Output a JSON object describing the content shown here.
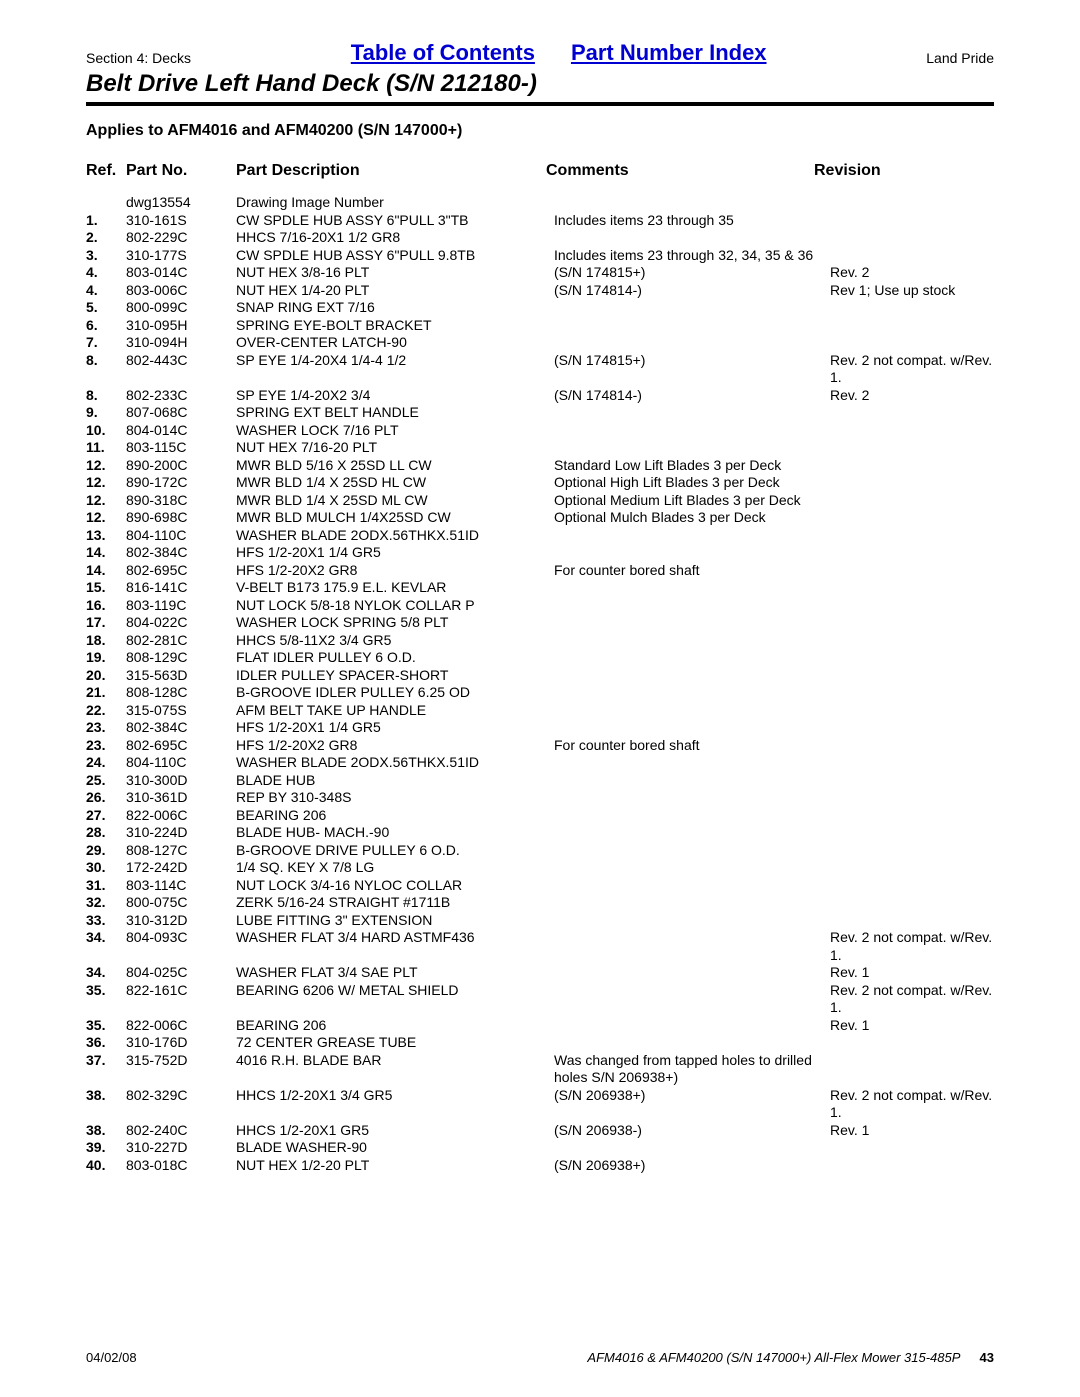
{
  "header": {
    "section_label": "Section 4: Decks",
    "toc_link": "Table of Contents",
    "pni_link": "Part Number Index",
    "brand": "Land Pride",
    "title": "Belt Drive Left Hand Deck (S/N 212180-)",
    "applies_to": "Applies to AFM4016 and AFM40200 (S/N 147000+)"
  },
  "columns": {
    "ref": "Ref.",
    "part": "Part No.",
    "desc": "Part Description",
    "comm": "Comments",
    "rev": "Revision"
  },
  "rows": [
    {
      "ref": "",
      "part": "dwg13554",
      "desc": "Drawing Image Number",
      "comm": "",
      "rev": ""
    },
    {
      "ref": "1.",
      "part": "310-161S",
      "desc": "CW SPDLE HUB ASSY 6\"PULL 3\"TB",
      "comm": "Includes items 23 through 35",
      "rev": ""
    },
    {
      "ref": "2.",
      "part": "802-229C",
      "desc": "HHCS 7/16-20X1 1/2 GR8",
      "comm": "",
      "rev": ""
    },
    {
      "ref": "3.",
      "part": "310-177S",
      "desc": "CW SPDLE HUB ASSY 6\"PULL 9.8TB",
      "comm": "Includes items 23 through 32, 34, 35 & 36",
      "rev": ""
    },
    {
      "ref": "4.",
      "part": "803-014C",
      "desc": "NUT HEX 3/8-16 PLT",
      "comm": "(S/N 174815+)",
      "rev": "Rev. 2"
    },
    {
      "ref": "4.",
      "part": "803-006C",
      "desc": "NUT HEX 1/4-20 PLT",
      "comm": "(S/N 174814-)",
      "rev": "Rev 1; Use up stock"
    },
    {
      "ref": "5.",
      "part": "800-099C",
      "desc": "SNAP RING EXT 7/16",
      "comm": "",
      "rev": ""
    },
    {
      "ref": "6.",
      "part": "310-095H",
      "desc": "SPRING EYE-BOLT BRACKET",
      "comm": "",
      "rev": ""
    },
    {
      "ref": "7.",
      "part": "310-094H",
      "desc": "OVER-CENTER LATCH-90",
      "comm": "",
      "rev": ""
    },
    {
      "ref": "8.",
      "part": "802-443C",
      "desc": "SP EYE 1/4-20X4 1/4-4 1/2",
      "comm": "(S/N 174815+)",
      "rev": "Rev. 2 not compat. w/Rev. 1."
    },
    {
      "ref": "8.",
      "part": "802-233C",
      "desc": "SP EYE 1/4-20X2 3/4",
      "comm": "(S/N 174814-)",
      "rev": "Rev. 2"
    },
    {
      "ref": "9.",
      "part": "807-068C",
      "desc": "SPRING EXT BELT HANDLE",
      "comm": "",
      "rev": ""
    },
    {
      "ref": "10.",
      "part": "804-014C",
      "desc": "WASHER LOCK 7/16 PLT",
      "comm": "",
      "rev": ""
    },
    {
      "ref": "11.",
      "part": "803-115C",
      "desc": "NUT HEX 7/16-20 PLT",
      "comm": "",
      "rev": ""
    },
    {
      "ref": "12.",
      "part": "890-200C",
      "desc": "MWR BLD 5/16 X 25SD LL CW",
      "comm": "Standard Low Lift Blades 3 per Deck",
      "rev": ""
    },
    {
      "ref": "12.",
      "part": "890-172C",
      "desc": "MWR BLD 1/4 X 25SD HL CW",
      "comm": "Optional High Lift Blades 3 per Deck",
      "rev": ""
    },
    {
      "ref": "12.",
      "part": "890-318C",
      "desc": "MWR BLD 1/4 X 25SD ML CW",
      "comm": "Optional Medium Lift Blades 3 per Deck",
      "rev": ""
    },
    {
      "ref": "12.",
      "part": "890-698C",
      "desc": "MWR BLD MULCH 1/4X25SD CW",
      "comm": "Optional Mulch Blades 3 per Deck",
      "rev": ""
    },
    {
      "ref": "13.",
      "part": "804-110C",
      "desc": "WASHER BLADE 2ODX.56THKX.51ID",
      "comm": "",
      "rev": ""
    },
    {
      "ref": "14.",
      "part": "802-384C",
      "desc": "HFS 1/2-20X1 1/4 GR5",
      "comm": "",
      "rev": ""
    },
    {
      "ref": "14.",
      "part": "802-695C",
      "desc": "HFS 1/2-20X2 GR8",
      "comm": "For counter bored shaft",
      "rev": ""
    },
    {
      "ref": "15.",
      "part": "816-141C",
      "desc": "V-BELT B173 175.9 E.L. KEVLAR",
      "comm": "",
      "rev": ""
    },
    {
      "ref": "16.",
      "part": "803-119C",
      "desc": "NUT LOCK 5/8-18 NYLOK COLLAR P",
      "comm": "",
      "rev": ""
    },
    {
      "ref": "17.",
      "part": "804-022C",
      "desc": "WASHER LOCK SPRING 5/8 PLT",
      "comm": "",
      "rev": ""
    },
    {
      "ref": "18.",
      "part": "802-281C",
      "desc": "HHCS 5/8-11X2 3/4 GR5",
      "comm": "",
      "rev": ""
    },
    {
      "ref": "19.",
      "part": "808-129C",
      "desc": "FLAT IDLER PULLEY 6 O.D.",
      "comm": "",
      "rev": ""
    },
    {
      "ref": "20.",
      "part": "315-563D",
      "desc": "IDLER PULLEY SPACER-SHORT",
      "comm": "",
      "rev": ""
    },
    {
      "ref": "21.",
      "part": "808-128C",
      "desc": "B-GROOVE IDLER PULLEY 6.25 OD",
      "comm": "",
      "rev": ""
    },
    {
      "ref": "22.",
      "part": "315-075S",
      "desc": "AFM BELT TAKE UP HANDLE",
      "comm": "",
      "rev": ""
    },
    {
      "ref": "23.",
      "part": "802-384C",
      "desc": "HFS 1/2-20X1 1/4 GR5",
      "comm": "",
      "rev": ""
    },
    {
      "ref": "23.",
      "part": "802-695C",
      "desc": "HFS 1/2-20X2 GR8",
      "comm": "For counter bored shaft",
      "rev": ""
    },
    {
      "ref": "24.",
      "part": "804-110C",
      "desc": "WASHER BLADE 2ODX.56THKX.51ID",
      "comm": "",
      "rev": ""
    },
    {
      "ref": "25.",
      "part": "310-300D",
      "desc": "BLADE HUB",
      "comm": "",
      "rev": ""
    },
    {
      "ref": "26.",
      "part": "310-361D",
      "desc": "REP BY 310-348S",
      "comm": "",
      "rev": ""
    },
    {
      "ref": "27.",
      "part": "822-006C",
      "desc": "BEARING 206",
      "comm": "",
      "rev": ""
    },
    {
      "ref": "28.",
      "part": "310-224D",
      "desc": "BLADE HUB- MACH.-90",
      "comm": "",
      "rev": ""
    },
    {
      "ref": "29.",
      "part": "808-127C",
      "desc": "B-GROOVE DRIVE PULLEY 6 O.D.",
      "comm": "",
      "rev": ""
    },
    {
      "ref": "30.",
      "part": "172-242D",
      "desc": "1/4 SQ. KEY X 7/8 LG",
      "comm": "",
      "rev": ""
    },
    {
      "ref": "31.",
      "part": "803-114C",
      "desc": "NUT LOCK 3/4-16 NYLOC COLLAR",
      "comm": "",
      "rev": ""
    },
    {
      "ref": "32.",
      "part": "800-075C",
      "desc": "ZERK 5/16-24 STRAIGHT #1711B",
      "comm": "",
      "rev": ""
    },
    {
      "ref": "33.",
      "part": "310-312D",
      "desc": "LUBE FITTING 3\" EXTENSION",
      "comm": "",
      "rev": ""
    },
    {
      "ref": "34.",
      "part": "804-093C",
      "desc": "WASHER FLAT 3/4 HARD ASTMF436",
      "comm": "",
      "rev": "Rev. 2 not compat. w/Rev. 1."
    },
    {
      "ref": "34.",
      "part": "804-025C",
      "desc": "WASHER FLAT 3/4 SAE PLT",
      "comm": "",
      "rev": "Rev. 1"
    },
    {
      "ref": "35.",
      "part": "822-161C",
      "desc": "BEARING 6206 W/ METAL SHIELD",
      "comm": "",
      "rev": "Rev. 2 not compat. w/Rev. 1."
    },
    {
      "ref": "35.",
      "part": "822-006C",
      "desc": "BEARING 206",
      "comm": "",
      "rev": "Rev. 1"
    },
    {
      "ref": "36.",
      "part": "310-176D",
      "desc": "72 CENTER GREASE TUBE",
      "comm": "",
      "rev": ""
    },
    {
      "ref": "37.",
      "part": "315-752D",
      "desc": "4016 R.H. BLADE BAR",
      "comm": "Was changed from tapped holes to drilled holes S/N 206938+)",
      "rev": ""
    },
    {
      "ref": "38.",
      "part": "802-329C",
      "desc": "HHCS 1/2-20X1 3/4 GR5",
      "comm": "(S/N 206938+)",
      "rev": "Rev. 2 not compat. w/Rev. 1."
    },
    {
      "ref": "38.",
      "part": "802-240C",
      "desc": "HHCS 1/2-20X1 GR5",
      "comm": "(S/N 206938-)",
      "rev": "Rev. 1"
    },
    {
      "ref": "39.",
      "part": "310-227D",
      "desc": "BLADE WASHER-90",
      "comm": "",
      "rev": ""
    },
    {
      "ref": "40.",
      "part": "803-018C",
      "desc": "NUT HEX 1/2-20 PLT",
      "comm": "(S/N 206938+)",
      "rev": ""
    }
  ],
  "footer": {
    "date": "04/02/08",
    "doc": "AFM4016 & AFM40200 (S/N 147000+) All-Flex Mower 315-485P",
    "page": "43"
  }
}
